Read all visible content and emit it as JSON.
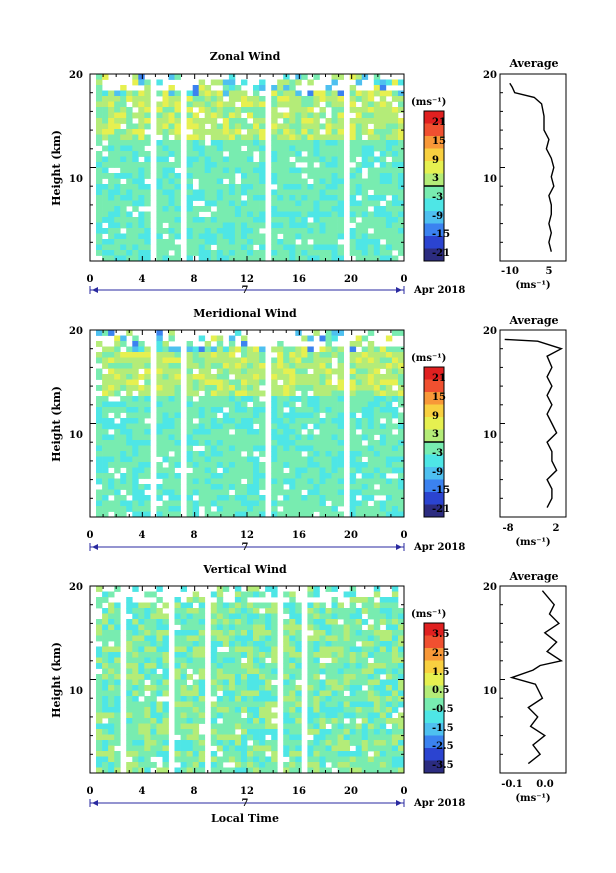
{
  "figure": {
    "xlabel": "Local Time",
    "day_label": "7",
    "month_label": "Apr 2018"
  },
  "chart_data": [
    {
      "type": "heatmap",
      "title": "Zonal Wind",
      "xlabel": "Local Time",
      "ylabel": "Height (km)",
      "xlim": [
        0,
        24
      ],
      "ylim": [
        0,
        20
      ],
      "xticks": [
        "0",
        "4",
        "8",
        "12",
        "16",
        "20",
        "0"
      ],
      "yticks": [
        "10",
        "20"
      ],
      "colorbar": {
        "unit": "(ms⁻¹)",
        "range": [
          -24,
          24
        ],
        "ticks": [
          "21",
          "15",
          "9",
          "3",
          "-3",
          "-9",
          "-15",
          "-21"
        ],
        "contour_level": 0
      },
      "average": {
        "title": "Average",
        "xlabel": "(ms⁻¹)",
        "xticks": [
          "-10",
          "5"
        ],
        "xlim": [
          -18,
          9
        ],
        "profile": [
          [
            -14,
            19
          ],
          [
            -13,
            18.6
          ],
          [
            -12,
            18
          ],
          [
            -4,
            17.5
          ],
          [
            -1,
            16.8
          ],
          [
            0,
            15.5
          ],
          [
            0,
            14
          ],
          [
            2,
            13
          ],
          [
            1,
            12
          ],
          [
            3,
            11
          ],
          [
            4,
            10
          ],
          [
            3,
            9
          ],
          [
            4,
            8
          ],
          [
            2,
            7
          ],
          [
            3,
            6
          ],
          [
            3,
            5
          ],
          [
            2,
            4
          ],
          [
            3,
            3
          ],
          [
            2,
            2
          ],
          [
            3,
            1
          ]
        ]
      }
    },
    {
      "type": "heatmap",
      "title": "Meridional Wind",
      "xlabel": "Local Time",
      "ylabel": "Height (km)",
      "xlim": [
        0,
        24
      ],
      "ylim": [
        0,
        20
      ],
      "xticks": [
        "0",
        "4",
        "8",
        "12",
        "16",
        "20",
        "0"
      ],
      "yticks": [
        "10",
        "20"
      ],
      "colorbar": {
        "unit": "(ms⁻¹)",
        "range": [
          -24,
          24
        ],
        "ticks": [
          "21",
          "15",
          "9",
          "3",
          "-3",
          "-9",
          "-15",
          "-21"
        ],
        "contour_level": 0
      },
      "average": {
        "title": "Average",
        "xlabel": "(ms⁻¹)",
        "xticks": [
          "-8",
          "2"
        ],
        "xlim": [
          -10,
          4
        ],
        "profile": [
          [
            -9,
            19
          ],
          [
            -2,
            18.8
          ],
          [
            3,
            18
          ],
          [
            0,
            17.2
          ],
          [
            1,
            16
          ],
          [
            0,
            15
          ],
          [
            1,
            14
          ],
          [
            0,
            13
          ],
          [
            1,
            12
          ],
          [
            0,
            11
          ],
          [
            1,
            10
          ],
          [
            2,
            9
          ],
          [
            0,
            8
          ],
          [
            1,
            7
          ],
          [
            1,
            6
          ],
          [
            2,
            5
          ],
          [
            0,
            4
          ],
          [
            1,
            3
          ],
          [
            1,
            2
          ],
          [
            0,
            1
          ]
        ]
      }
    },
    {
      "type": "heatmap",
      "title": "Vertical Wind",
      "xlabel": "Local Time",
      "ylabel": "Height (km)",
      "xlim": [
        0,
        24
      ],
      "ylim": [
        0,
        20
      ],
      "xticks": [
        "0",
        "4",
        "8",
        "12",
        "16",
        "20",
        "0"
      ],
      "yticks": [
        "10",
        "20"
      ],
      "colorbar": {
        "unit": "(ms⁻¹)",
        "range": [
          -4,
          4
        ],
        "ticks": [
          "3.5",
          "2.5",
          "1.5",
          "0.5",
          "-0.5",
          "-1.5",
          "-2.5",
          "-3.5"
        ]
      },
      "average": {
        "title": "Average",
        "xlabel": "(ms⁻¹)",
        "xticks": [
          "-0.1",
          "0.0"
        ],
        "xlim": [
          -0.2,
          0.08
        ],
        "profile": [
          [
            -0.02,
            19.5
          ],
          [
            0.03,
            18
          ],
          [
            0.01,
            17
          ],
          [
            0.05,
            16
          ],
          [
            -0.01,
            15
          ],
          [
            0.04,
            14
          ],
          [
            0.0,
            13
          ],
          [
            0.06,
            12
          ],
          [
            -0.03,
            11.5
          ],
          [
            -0.06,
            11
          ],
          [
            -0.15,
            10.2
          ],
          [
            -0.05,
            9.5
          ],
          [
            -0.02,
            8
          ],
          [
            -0.08,
            7
          ],
          [
            -0.04,
            6
          ],
          [
            -0.07,
            5
          ],
          [
            -0.01,
            4
          ],
          [
            -0.06,
            3
          ],
          [
            -0.03,
            2
          ],
          [
            -0.08,
            1
          ]
        ]
      }
    }
  ],
  "colors": {
    "map": [
      "#2c2c80",
      "#2b44d0",
      "#3b82f0",
      "#4ec0f0",
      "#4ee6e6",
      "#78ecb0",
      "#b4ec78",
      "#e6f050",
      "#f8d040",
      "#f89838",
      "#f05030",
      "#e02020"
    ]
  }
}
